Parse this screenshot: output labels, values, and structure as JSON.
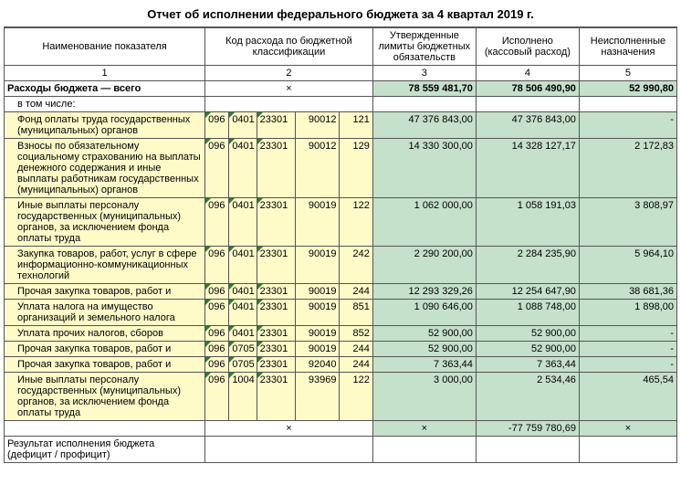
{
  "title": "Отчет об исполнении федерального бюджета за 4 квартал 2019 г.",
  "headers": {
    "name": "Наименование показателя",
    "code": "Код расхода\nпо бюджетной классификации",
    "approved": "Утвержденные лимиты бюджетных обязательств",
    "executed": "Исполнено (кассовый расход)",
    "unexecuted": "Неисполненные назначения"
  },
  "colnums": [
    "1",
    "2",
    "3",
    "4",
    "5"
  ],
  "totals": {
    "label": "Расходы бюджета — всего",
    "code": "×",
    "approved": "78 559 481,70",
    "executed": "78 506 490,90",
    "unexecuted": "52 990,80"
  },
  "subheader": "в том числе:",
  "rows": [
    {
      "name": "Фонд оплаты труда государственных (муниципальных) органов",
      "c1": "096",
      "c2": "0401",
      "c3": "23301",
      "c4": "90012",
      "c5": "121",
      "approved": "47 376 843,00",
      "executed": "47 376 843,00",
      "unexec": "-"
    },
    {
      "name": "Взносы по обязательному социальному страхованию на выплаты денежного содержания и иные выплаты работникам государственных (муниципальных) органов",
      "c1": "096",
      "c2": "0401",
      "c3": "23301",
      "c4": "90012",
      "c5": "129",
      "approved": "14 330 300,00",
      "executed": "14 328 127,17",
      "unexec": "2 172,83"
    },
    {
      "name": "Иные выплаты персоналу государственных (муниципальных) органов, за исключением фонда оплаты труда",
      "c1": "096",
      "c2": "0401",
      "c3": "23301",
      "c4": "90019",
      "c5": "122",
      "approved": "1 062 000,00",
      "executed": "1 058 191,03",
      "unexec": "3 808,97"
    },
    {
      "name": "Закупка товаров, работ, услуг в сфере информационно-коммуникационных технологий",
      "c1": "096",
      "c2": "0401",
      "c3": "23301",
      "c4": "90019",
      "c5": "242",
      "approved": "2 290 200,00",
      "executed": "2 284 235,90",
      "unexec": "5 964,10"
    },
    {
      "name": "Прочая закупка товаров, работ и",
      "c1": "096",
      "c2": "0401",
      "c3": "23301",
      "c4": "90019",
      "c5": "244",
      "approved": "12 293 329,26",
      "executed": "12 254 647,90",
      "unexec": "38 681,36"
    },
    {
      "name": "Уплата налога на имущество организаций и земельного налога",
      "c1": "096",
      "c2": "0401",
      "c3": "23301",
      "c4": "90019",
      "c5": "851",
      "approved": "1 090 646,00",
      "executed": "1 088 748,00",
      "unexec": "1 898,00"
    },
    {
      "name": "Уплата прочих налогов, сборов",
      "c1": "096",
      "c2": "0401",
      "c3": "23301",
      "c4": "90019",
      "c5": "852",
      "approved": "52 900,00",
      "executed": "52 900,00",
      "unexec": "-"
    },
    {
      "name": "Прочая закупка товаров, работ и",
      "c1": "096",
      "c2": "0705",
      "c3": "23301",
      "c4": "90019",
      "c5": "244",
      "approved": "52 900,00",
      "executed": "52 900,00",
      "unexec": "-"
    },
    {
      "name": "Прочая закупка товаров, работ и",
      "c1": "096",
      "c2": "0705",
      "c3": "23301",
      "c4": "92040",
      "c5": "244",
      "approved": "7 363,44",
      "executed": "7 363,44",
      "unexec": "-"
    },
    {
      "name": "Иные выплаты персоналу государственных (муниципальных) органов, за исключением фонда оплаты труда",
      "c1": "096",
      "c2": "1004",
      "c3": "23301",
      "c4": "93969",
      "c5": "122",
      "approved": "3 000,00",
      "executed": "2 534,46",
      "unexec": "465,54"
    }
  ],
  "summary_row": {
    "code": "×",
    "approved": "×",
    "executed": "-77 759 780,69",
    "unexec": "×"
  },
  "footer": {
    "label": "Результат исполнения бюджета (дефицит / профицит)"
  },
  "col_widths": {
    "name": 218,
    "c1": 26,
    "c2": 30,
    "c3": 42,
    "c4": 48,
    "c5": 36,
    "approved": 112,
    "executed": 112,
    "unexec": 106
  },
  "colors": {
    "yellow": "#fefbc9",
    "green": "#c5e0cb",
    "border": "#555555",
    "marker": "#2e7d32"
  }
}
